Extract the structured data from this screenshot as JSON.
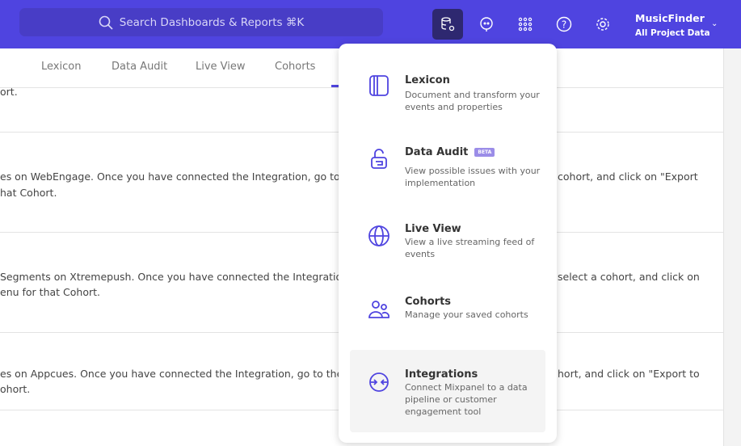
{
  "header": {
    "search_placeholder": "Search Dashboards & Reports ⌘K",
    "project_name": "MusicFinder",
    "project_scope": "All Project Data",
    "icons": [
      "data-management-icon",
      "chat-icon",
      "apps-grid-icon",
      "help-icon",
      "settings-icon"
    ]
  },
  "tabs": [
    "Lexicon",
    "Data Audit",
    "Live View",
    "Cohorts"
  ],
  "rows": [
    {
      "lines": [
        "ort."
      ],
      "right": []
    },
    {
      "lines": [
        "es on WebEngage. Once you have connected the Integration, go to the",
        "hat Cohort."
      ],
      "right": [
        "cohort, and click on \"Export"
      ]
    },
    {
      "lines": [
        "Segments on Xtremepush. Once you have connected the Integration, ",
        "enu for that Cohort."
      ],
      "right": [
        "select a cohort, and click on"
      ]
    },
    {
      "lines": [
        "es on Appcues. Once you have connected the Integration, go to the M",
        "ohort."
      ],
      "right": [
        "hort, and click on \"Export to"
      ]
    }
  ],
  "menu": {
    "items": [
      {
        "title": "Lexicon",
        "desc": "Document and transform your events and properties"
      },
      {
        "title": "Data Audit",
        "badge": "BETA",
        "desc": "View possible issues with your implementation"
      },
      {
        "title": "Live View",
        "desc": "View a live streaming feed of events"
      },
      {
        "title": "Cohorts",
        "desc": "Manage your saved cohorts"
      },
      {
        "title": "Integrations",
        "desc": "Connect Mixpanel to a data pipeline or customer engagement tool"
      }
    ]
  },
  "colors": {
    "brand": "#4f44e0",
    "icon": "#4f44e0"
  }
}
